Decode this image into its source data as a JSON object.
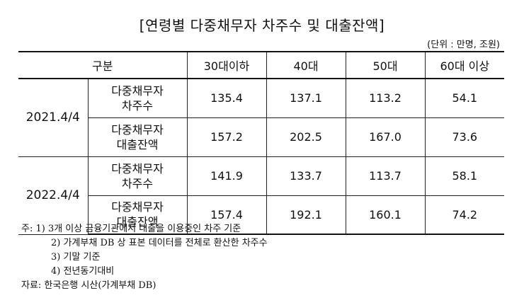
{
  "title": "[연령별 다중채무자 차주수 및 대출잔액]",
  "unit": "(단위 : 만명, 조원)",
  "table": {
    "header": [
      "구분",
      "30대이하",
      "40대",
      "50대",
      "60대 이상"
    ],
    "groups": [
      {
        "date": "2021.4/4",
        "rows": [
          {
            "cat": [
              "다중채무자",
              "차주수"
            ],
            "values": [
              "135.4",
              "137.1",
              "113.2",
              "54.1"
            ]
          },
          {
            "cat": [
              "다중채무자",
              "대출잔액"
            ],
            "values": [
              "157.2",
              "202.5",
              "167.0",
              "73.6"
            ]
          }
        ]
      },
      {
        "date": "2022.4/4",
        "rows": [
          {
            "cat": [
              "다중채무자",
              "차주수"
            ],
            "values": [
              "141.9",
              "133.7",
              "113.7",
              "58.1"
            ]
          },
          {
            "cat": [
              "다중채무자",
              "대출잔액"
            ],
            "values": [
              "157.4",
              "192.1",
              "160.1",
              "74.2"
            ]
          }
        ]
      }
    ]
  },
  "notes": {
    "lines": [
      "주: 1) 3개 이상 금융기관에서 대출을 이용중인 차주 기준",
      "2) 가계부채 DB 상 표본 데이터를 전체로 환산한 차주수",
      "3) 기말 기준",
      "4) 전년동기대비"
    ],
    "source": "자료: 한국은행 시산(가계부채 DB)"
  }
}
